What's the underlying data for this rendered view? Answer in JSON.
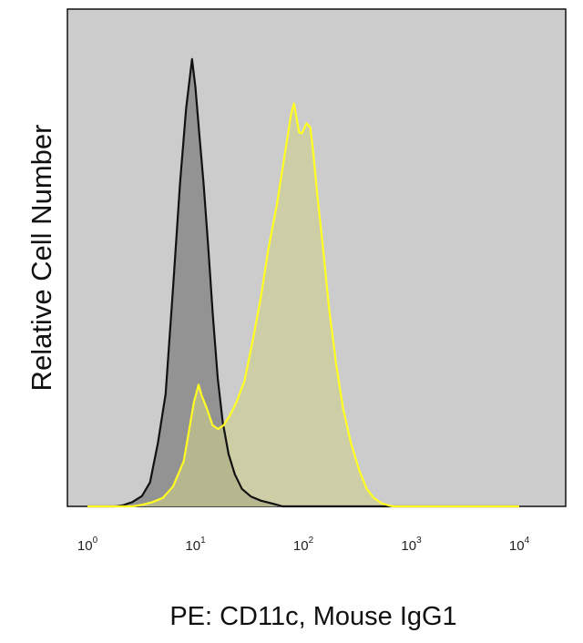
{
  "chart_data": {
    "type": "area",
    "title": "",
    "xlabel": "PE: CD11c, Mouse IgG1",
    "ylabel": "Relative Cell Number",
    "x_scale": "log",
    "xlim": [
      1,
      10000
    ],
    "ylim": [
      0,
      100
    ],
    "grid": false,
    "legend": "none",
    "background_color": "#cccccc",
    "x_ticks": [
      {
        "value": 1,
        "base": "10",
        "exp": "0"
      },
      {
        "value": 10,
        "base": "10",
        "exp": "1"
      },
      {
        "value": 100,
        "base": "10",
        "exp": "2"
      },
      {
        "value": 1000,
        "base": "10",
        "exp": "3"
      },
      {
        "value": 10000,
        "base": "10",
        "exp": "4"
      }
    ],
    "series": [
      {
        "role": "isotype-control",
        "stroke": "#111111",
        "fill": "#8f8f8f",
        "x": [
          1.0,
          1.8,
          2.1,
          2.6,
          3.2,
          3.8,
          4.5,
          5.3,
          6.2,
          7.2,
          8.2,
          9.3,
          10.0,
          10.8,
          11.9,
          13.1,
          14.5,
          16.1,
          17.9,
          20.3,
          23.2,
          27.0,
          32.6,
          40.6,
          51.9,
          57.6,
          64.0,
          10000.0
        ],
        "y": [
          0.0,
          0.0,
          0.2,
          0.9,
          2.2,
          5.1,
          13.5,
          23.8,
          46.1,
          68.4,
          84.3,
          94.8,
          88.9,
          79.6,
          68.4,
          55.5,
          40.7,
          27.2,
          17.9,
          11.1,
          6.8,
          3.7,
          2.1,
          1.2,
          0.6,
          0.3,
          0.0,
          0.0
        ]
      },
      {
        "role": "cd11c-stain",
        "stroke": "#ffff22",
        "fill": "#cfcf8c",
        "x": [
          1.0,
          2.6,
          3.3,
          4.0,
          5.0,
          6.2,
          7.8,
          9.7,
          10.7,
          11.4,
          12.8,
          14.4,
          16.2,
          18.3,
          20.8,
          24.0,
          28.5,
          34.4,
          40.6,
          47.4,
          56.6,
          66.7,
          76.6,
          81.9,
          85.1,
          91.5,
          97.1,
          107.0,
          116.2,
          123.2,
          134.9,
          150.2,
          173.3,
          202.0,
          233.7,
          275.6,
          329.1,
          386.9,
          450.0,
          526.4,
          620.1,
          678.7,
          10000.0
        ],
        "y": [
          0.0,
          0.0,
          0.4,
          0.9,
          1.8,
          4.2,
          9.6,
          22.1,
          25.8,
          23.6,
          20.7,
          17.2,
          16.4,
          17.2,
          19.2,
          22.1,
          26.6,
          35.8,
          44.6,
          54.6,
          63.7,
          74.1,
          82.9,
          85.4,
          83.2,
          79.3,
          79.1,
          81.2,
          80.3,
          75.3,
          65.9,
          56.1,
          41.9,
          29.9,
          20.7,
          13.5,
          7.7,
          3.7,
          1.8,
          0.7,
          0.2,
          0.0,
          0.0
        ]
      }
    ]
  }
}
